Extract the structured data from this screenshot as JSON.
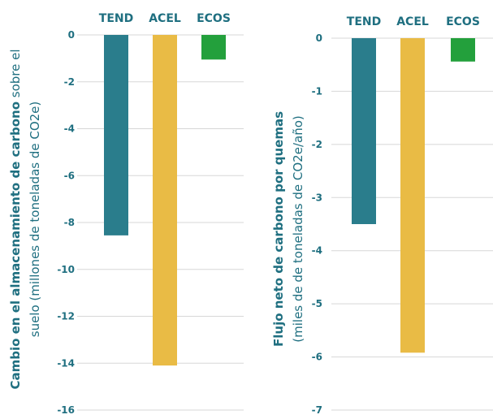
{
  "chart_data": [
    {
      "type": "bar",
      "categories": [
        "TEND",
        "ACEL",
        "ECOS"
      ],
      "values": [
        -8.55,
        -14.1,
        -1.05
      ],
      "ylabel_bold": "Cambio en el almacenamiento de carbono",
      "ylabel_rest": "sobre el",
      "ylabel_line2": "suelo (millones de toneladas de CO2e)",
      "ylim": [
        -16,
        0
      ],
      "yticks": [
        0,
        -2,
        -4,
        -6,
        -8,
        -10,
        -12,
        -14,
        -16
      ],
      "ytick_labels": [
        "0",
        "-2",
        "-4",
        "-6",
        "-8",
        "-10",
        "-12",
        "-14",
        "-16"
      ],
      "grid": true,
      "colors": [
        "#2a7d8c",
        "#e9bb45",
        "#23a03c"
      ]
    },
    {
      "type": "bar",
      "categories": [
        "TEND",
        "ACEL",
        "ECOS"
      ],
      "values": [
        -3.5,
        -5.92,
        -0.44
      ],
      "ylabel_bold": "Flujo neto de carbono por quemas",
      "ylabel_line2": "(miles de de toneladas de CO2e/año)",
      "ylim": [
        -7,
        0
      ],
      "yticks": [
        0,
        -1,
        -2,
        -3,
        -4,
        -5,
        -6,
        -7
      ],
      "ytick_labels": [
        "0",
        "-1",
        "-2",
        "-3",
        "-4",
        "-5",
        "-6",
        "-7"
      ],
      "grid": true,
      "colors": [
        "#2a7d8c",
        "#e9bb45",
        "#23a03c"
      ]
    }
  ]
}
